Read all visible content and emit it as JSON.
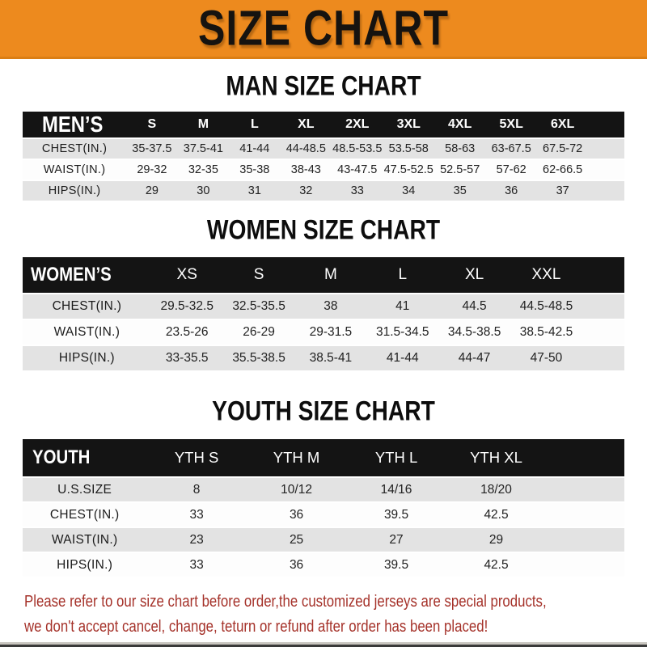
{
  "banner": {
    "title": "SIZE CHART"
  },
  "sections": [
    {
      "id": "mens",
      "heading": "MAN SIZE CHART",
      "header_label": "MEN’S",
      "columns": [
        "S",
        "M",
        "L",
        "XL",
        "2XL",
        "3XL",
        "4XL",
        "5XL",
        "6XL"
      ],
      "rows": [
        {
          "label": "CHEST(IN.)",
          "values": [
            "35-37.5",
            "37.5-41",
            "41-44",
            "44-48.5",
            "48.5-53.5",
            "53.5-58",
            "58-63",
            "63-67.5",
            "67.5-72"
          ]
        },
        {
          "label": "WAIST(IN.)",
          "values": [
            "29-32",
            "32-35",
            "35-38",
            "38-43",
            "43-47.5",
            "47.5-52.5",
            "52.5-57",
            "57-62",
            "62-66.5"
          ]
        },
        {
          "label": "HIPS(IN.)",
          "values": [
            "29",
            "30",
            "31",
            "32",
            "33",
            "34",
            "35",
            "36",
            "37"
          ]
        }
      ]
    },
    {
      "id": "womens",
      "heading": "WOMEN SIZE CHART",
      "header_label": "WOMEN’S",
      "columns": [
        "XS",
        "S",
        "M",
        "L",
        "XL",
        "XXL"
      ],
      "rows": [
        {
          "label": "CHEST(IN.)",
          "values": [
            "29.5-32.5",
            "32.5-35.5",
            "38",
            "41",
            "44.5",
            "44.5-48.5"
          ]
        },
        {
          "label": "WAIST(IN.)",
          "values": [
            "23.5-26",
            "26-29",
            "29-31.5",
            "31.5-34.5",
            "34.5-38.5",
            "38.5-42.5"
          ]
        },
        {
          "label": "HIPS(IN.)",
          "values": [
            "33-35.5",
            "35.5-38.5",
            "38.5-41",
            "41-44",
            "44-47",
            "47-50"
          ]
        }
      ]
    },
    {
      "id": "youth",
      "heading": "YOUTH SIZE CHART",
      "header_label": "YOUTH",
      "columns": [
        "YTH S",
        "YTH M",
        "YTH L",
        "YTH XL"
      ],
      "rows": [
        {
          "label": "U.S.SIZE",
          "values": [
            "8",
            "10/12",
            "14/16",
            "18/20"
          ]
        },
        {
          "label": "CHEST(IN.)",
          "values": [
            "33",
            "36",
            "39.5",
            "42.5"
          ]
        },
        {
          "label": "WAIST(IN.)",
          "values": [
            "23",
            "25",
            "27",
            "29"
          ]
        },
        {
          "label": "HIPS(IN.)",
          "values": [
            "33",
            "36",
            "39.5",
            "42.5"
          ]
        }
      ]
    }
  ],
  "footer_notice": {
    "line1": "Please refer to our size chart before order,the customized jerseys are special products,",
    "line2": "we don't accept cancel, change, teturn or refund after order has been placed!"
  },
  "colors": {
    "banner_orange": "#ED8A1E",
    "header_black": "#141414",
    "row_gray": "#E3E3E3",
    "notice_red": "#A5322A"
  }
}
